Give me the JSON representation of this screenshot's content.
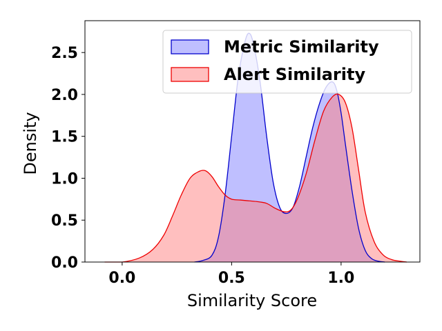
{
  "chart_data": {
    "type": "area",
    "xlabel": "Similarity Score",
    "ylabel": "Density",
    "xlim": [
      -0.17,
      1.36
    ],
    "ylim": [
      0,
      2.88
    ],
    "xticks": [
      "0.0",
      "0.5",
      "1.0"
    ],
    "xtick_values": [
      0.0,
      0.5,
      1.0
    ],
    "yticks": [
      "0.0",
      "0.5",
      "1.0",
      "1.5",
      "2.0",
      "2.5"
    ],
    "ytick_values": [
      0.0,
      0.5,
      1.0,
      1.5,
      2.0,
      2.5
    ],
    "grid": false,
    "legend_position": "top-right",
    "series": [
      {
        "name": "Metric Similarity",
        "line_color": "#0000cc",
        "fill_color": "#8080ff",
        "x": [
          0.33,
          0.37,
          0.41,
          0.44,
          0.47,
          0.5,
          0.53,
          0.56,
          0.58,
          0.6,
          0.63,
          0.66,
          0.69,
          0.72,
          0.75,
          0.78,
          0.81,
          0.84,
          0.87,
          0.9,
          0.93,
          0.96,
          0.98,
          1.0,
          1.02,
          1.05,
          1.08,
          1.11,
          1.14,
          1.17,
          1.2
        ],
        "y": [
          0.0,
          0.02,
          0.08,
          0.3,
          0.8,
          1.5,
          2.2,
          2.62,
          2.73,
          2.6,
          2.15,
          1.5,
          0.95,
          0.65,
          0.58,
          0.65,
          0.9,
          1.25,
          1.6,
          1.88,
          2.08,
          2.15,
          2.05,
          1.78,
          1.4,
          0.85,
          0.4,
          0.14,
          0.04,
          0.01,
          0.0
        ]
      },
      {
        "name": "Alert Similarity",
        "line_color": "#ee0000",
        "fill_color": "#ff8080",
        "x": [
          -0.08,
          0.0,
          0.08,
          0.14,
          0.19,
          0.23,
          0.27,
          0.31,
          0.35,
          0.38,
          0.41,
          0.44,
          0.47,
          0.5,
          0.54,
          0.58,
          0.62,
          0.66,
          0.7,
          0.74,
          0.77,
          0.8,
          0.84,
          0.88,
          0.92,
          0.96,
          0.99,
          1.02,
          1.05,
          1.08,
          1.11,
          1.15,
          1.19,
          1.23,
          1.27,
          1.3
        ],
        "y": [
          0.0,
          0.0,
          0.05,
          0.15,
          0.32,
          0.55,
          0.8,
          1.0,
          1.08,
          1.09,
          1.02,
          0.9,
          0.8,
          0.75,
          0.74,
          0.73,
          0.72,
          0.7,
          0.64,
          0.6,
          0.62,
          0.75,
          1.05,
          1.45,
          1.8,
          1.97,
          2.0,
          1.9,
          1.6,
          1.1,
          0.6,
          0.25,
          0.09,
          0.03,
          0.01,
          0.0
        ]
      }
    ]
  }
}
